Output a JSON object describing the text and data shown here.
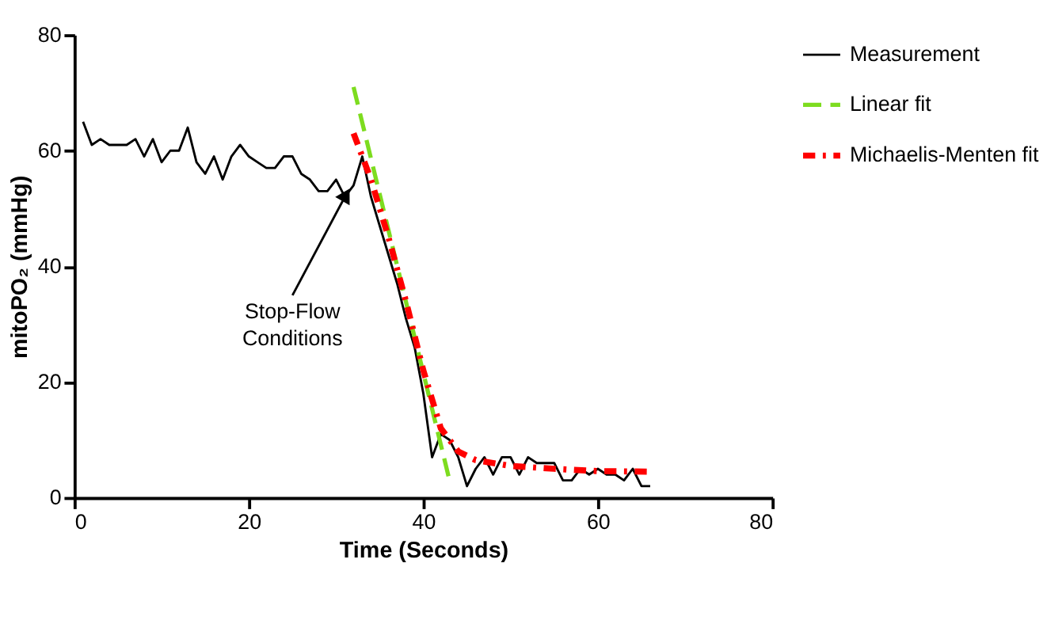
{
  "chart_data": {
    "type": "line",
    "xlabel": "Time (Seconds)",
    "ylabel": "mitoPO₂ (mmHg)",
    "xlim": [
      0,
      80
    ],
    "xticks": [
      0,
      20,
      40,
      60,
      80
    ],
    "ylim": [
      0,
      80
    ],
    "yticks": [
      0,
      20,
      40,
      60,
      80
    ],
    "grid": false,
    "legend": "top right",
    "marker": "none",
    "series": [
      {
        "name": "Measurement",
        "color": "#000000",
        "line_style": "solid",
        "x": [
          1,
          2,
          3,
          4,
          5,
          6,
          7,
          8,
          9,
          10,
          11,
          12,
          13,
          14,
          15,
          16,
          17,
          18,
          19,
          20,
          21,
          22,
          23,
          24,
          25,
          26,
          27,
          28,
          29,
          30,
          31,
          32,
          33,
          34,
          35,
          36,
          37,
          38,
          39,
          40,
          41,
          42,
          43,
          44,
          45,
          46,
          47,
          48,
          49,
          50,
          51,
          52,
          53,
          54,
          55,
          56,
          57,
          58,
          59,
          60,
          61,
          62,
          63,
          64,
          65,
          66
        ],
        "values": [
          65,
          61,
          62,
          61,
          61,
          61,
          62,
          59,
          62,
          58,
          60,
          60,
          64,
          58,
          56,
          59,
          55,
          59,
          61,
          59,
          58,
          57,
          57,
          59,
          59,
          56,
          55,
          53,
          53,
          55,
          52,
          54,
          59,
          52,
          47,
          42,
          37,
          31,
          26,
          18,
          7,
          11,
          10,
          7,
          2,
          5,
          7,
          4,
          7,
          7,
          4,
          7,
          6,
          6,
          6,
          3,
          3,
          5,
          4,
          5,
          4,
          4,
          3,
          5,
          2,
          2
        ]
      },
      {
        "name": "Linear fit",
        "color": "#7ddc1f",
        "line_style": "dashed",
        "x": [
          32,
          43
        ],
        "values": [
          71,
          3
        ]
      },
      {
        "name": "Michaelis-Menten fit",
        "color": "#ff0000",
        "line_style": "dotted",
        "x": [
          32,
          34,
          36,
          38,
          40,
          42,
          44,
          46,
          50,
          55,
          60,
          66
        ],
        "values": [
          63,
          55,
          45,
          34,
          22,
          12,
          8,
          6.5,
          5.5,
          5,
          4.6,
          4.5
        ]
      }
    ],
    "annotations": [
      {
        "text": "Stop-Flow\nConditions",
        "x": 31,
        "y": 52
      }
    ]
  }
}
